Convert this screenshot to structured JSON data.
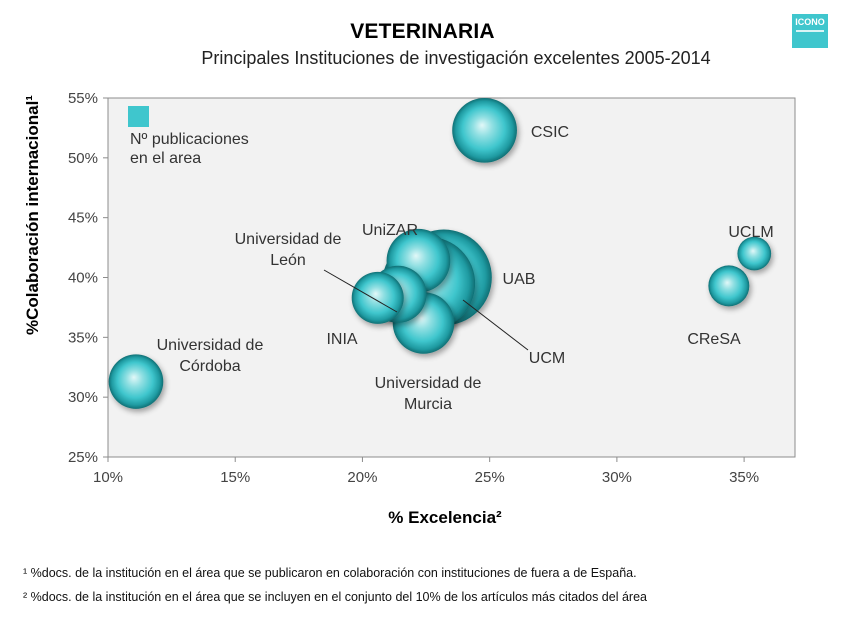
{
  "header": {
    "title": "VETERINARIA",
    "subtitle": "Principales Instituciones de investigación excelentes 2005-2014",
    "logo_text": "ICONO"
  },
  "footnotes": [
    "¹ %docs. de la institución en el área que se publicaron en colaboración con instituciones de fuera a de España.",
    "² %docs. de la institución en el área que se incluyen en el conjunto del 10% de los artículos más citados del área"
  ],
  "colors": {
    "bubble": "#3fc6cd",
    "bubble_dark": "#0f6f74",
    "bubble_light": "#dff7f7",
    "plot_bg": "#f2f2f2"
  },
  "chart_data": {
    "type": "bubble",
    "xlabel": "% Excelencia²",
    "ylabel": "%Colaboración internacional¹",
    "xlim": [
      0.1,
      0.37
    ],
    "ylim": [
      0.25,
      0.55
    ],
    "x_ticks": [
      "10%",
      "15%",
      "20%",
      "25%",
      "30%",
      "35%"
    ],
    "y_ticks": [
      "25%",
      "30%",
      "35%",
      "40%",
      "45%",
      "50%",
      "55%"
    ],
    "legend": {
      "label": "Nº publicaciones en el area",
      "position": "top-left"
    },
    "grid": false,
    "points": [
      {
        "label": "UAB",
        "x": 0.232,
        "y": 0.4,
        "size": 3.4
      },
      {
        "label": "UCM",
        "x": 0.226,
        "y": 0.395,
        "size": 3.2
      },
      {
        "label": "UniZAR",
        "x": 0.222,
        "y": 0.414,
        "size": 1.5
      },
      {
        "label": "Universidad de Murcia",
        "x": 0.224,
        "y": 0.362,
        "size": 1.4
      },
      {
        "label": "Universidad de León",
        "x": 0.214,
        "y": 0.386,
        "size": 1.2
      },
      {
        "label": "INIA",
        "x": 0.206,
        "y": 0.383,
        "size": 1.0
      },
      {
        "label": "CSIC",
        "x": 0.248,
        "y": 0.523,
        "size": 1.55
      },
      {
        "label": "Universidad de Córdoba",
        "x": 0.111,
        "y": 0.313,
        "size": 1.1
      },
      {
        "label": "UCLM",
        "x": 0.354,
        "y": 0.42,
        "size": 0.42
      },
      {
        "label": "CReSA",
        "x": 0.344,
        "y": 0.393,
        "size": 0.62
      }
    ]
  }
}
